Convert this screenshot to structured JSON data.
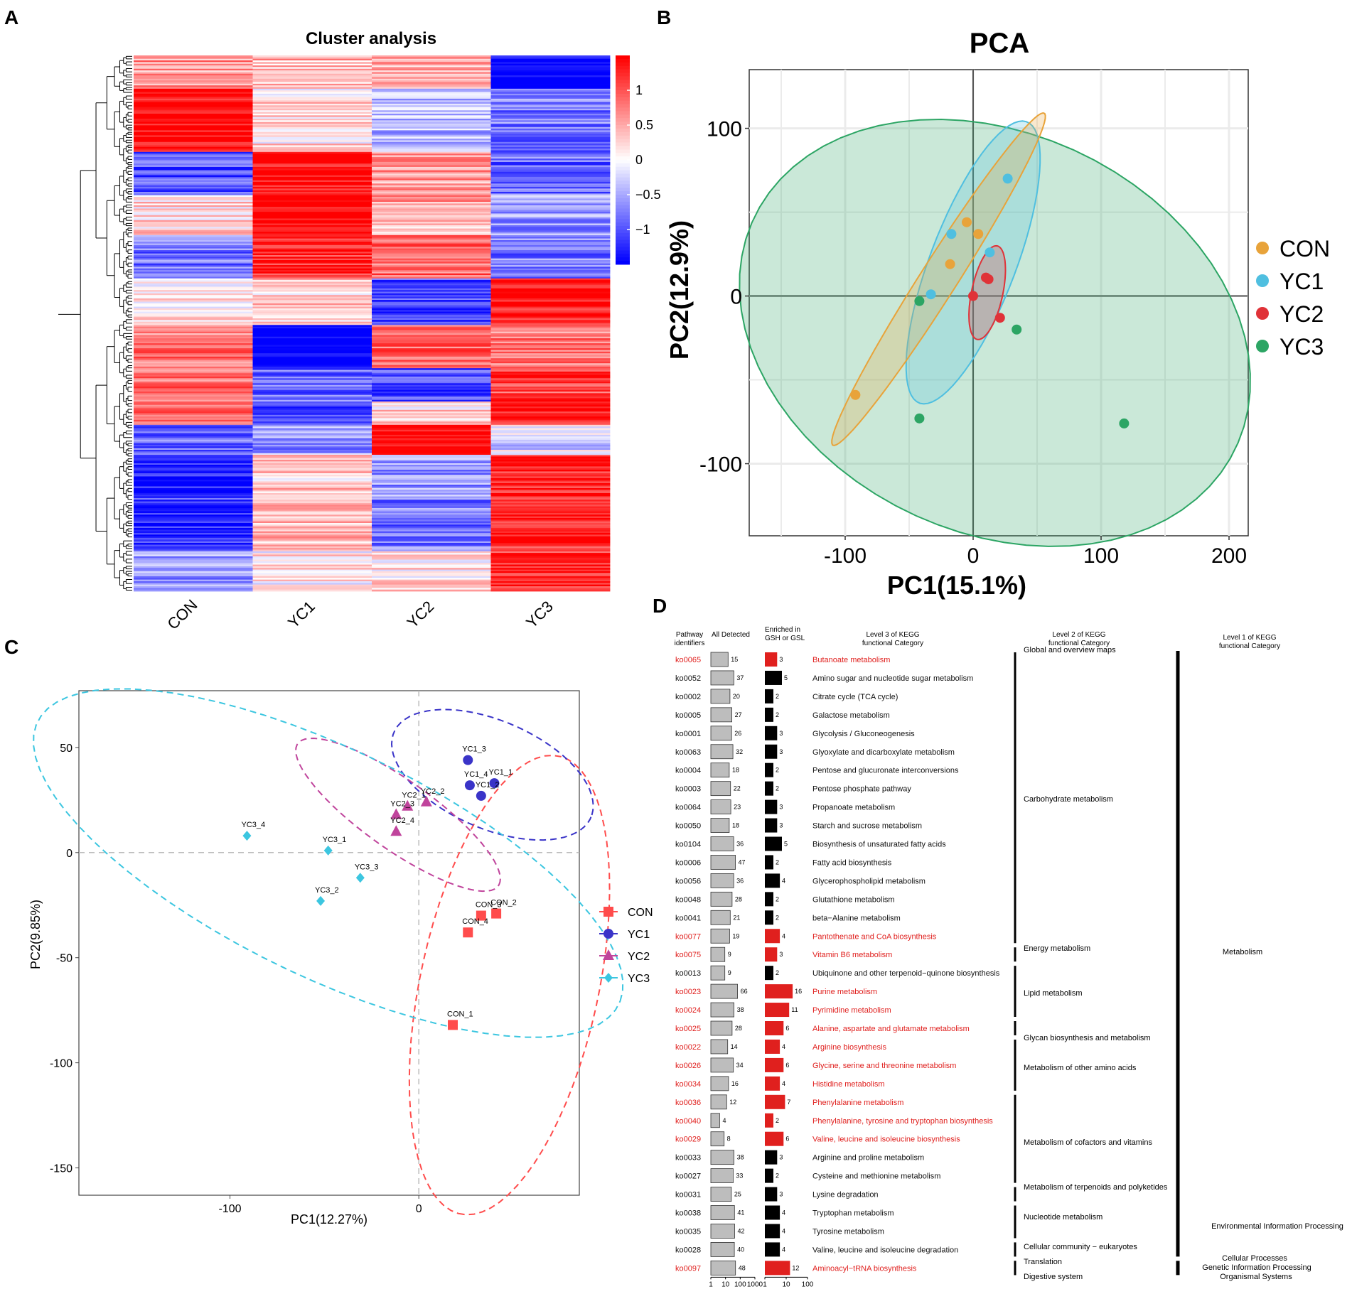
{
  "panel_labels": {
    "a": "A",
    "b": "B",
    "c": "C",
    "d": "D"
  },
  "chart_data": [
    {
      "id": "heatmap",
      "type": "heatmap",
      "title": "Cluster analysis",
      "columns": [
        "CON",
        "YC1",
        "YC2",
        "YC3"
      ],
      "colorbar": {
        "ticks": [
          1,
          0.5,
          0,
          -0.5,
          -1
        ],
        "tick_labels": [
          "1",
          "0.5",
          "0",
          "−0.5",
          "−1"
        ],
        "range": [
          -1.5,
          1.5
        ],
        "colors": {
          "high": "#ff0000",
          "mid": "#ffffff",
          "low": "#0000ff"
        }
      },
      "row_blocks": [
        {
          "rows": 20,
          "values": [
            0.6,
            0.4,
            0.5,
            -1.6
          ]
        },
        {
          "rows": 38,
          "values": [
            1.5,
            0.2,
            -0.4,
            -0.8
          ]
        },
        {
          "rows": 26,
          "values": [
            -1.0,
            1.5,
            0.6,
            -0.9
          ]
        },
        {
          "rows": 24,
          "values": [
            0.2,
            1.6,
            0.5,
            -0.6
          ]
        },
        {
          "rows": 26,
          "values": [
            -0.8,
            1.3,
            0.9,
            -0.8
          ]
        },
        {
          "rows": 28,
          "values": [
            0.2,
            0.3,
            -1.1,
            1.4
          ]
        },
        {
          "rows": 26,
          "values": [
            0.8,
            -1.6,
            0.9,
            0.8
          ]
        },
        {
          "rows": 20,
          "values": [
            0.9,
            -0.9,
            -1.0,
            1.1
          ]
        },
        {
          "rows": 14,
          "values": [
            0.9,
            -1.2,
            0.2,
            1.3
          ]
        },
        {
          "rows": 18,
          "values": [
            -0.9,
            -0.6,
            1.6,
            -0.2
          ]
        },
        {
          "rows": 26,
          "values": [
            -1.4,
            0.3,
            -0.6,
            1.3
          ]
        },
        {
          "rows": 32,
          "values": [
            -1.2,
            0.4,
            -0.8,
            1.3
          ]
        },
        {
          "rows": 24,
          "values": [
            -0.6,
            0.1,
            0.2,
            1.2
          ]
        }
      ]
    },
    {
      "id": "pca-b",
      "type": "scatter",
      "title": "PCA",
      "xlabel": "PC1(15.1%)",
      "ylabel": "PC2(12.9%)",
      "xlim": [
        -175,
        215
      ],
      "ylim": [
        -143,
        135
      ],
      "xticks": [
        -100,
        0,
        100,
        200
      ],
      "xtick_labels": [
        "-100",
        "0",
        "100",
        "200"
      ],
      "yticks": [
        100,
        0,
        -100
      ],
      "ytick_labels": [
        "100",
        "0",
        "-100"
      ],
      "series": [
        {
          "name": "CON",
          "color": "#e8a33a",
          "points": [
            [
              -92,
              -59
            ],
            [
              -18,
              19
            ],
            [
              -5,
              44
            ],
            [
              4,
              37
            ]
          ],
          "ellipse": {
            "cx": -27,
            "cy": 10,
            "rx": 129,
            "ry": 13,
            "angle": 50
          }
        },
        {
          "name": "YC1",
          "color": "#4fbfe0",
          "points": [
            [
              -33,
              1
            ],
            [
              -17,
              37
            ],
            [
              13,
              26
            ],
            [
              27,
              70
            ]
          ],
          "ellipse": {
            "cx": 0,
            "cy": 20,
            "rx": 94,
            "ry": 32,
            "angle": 62
          }
        },
        {
          "name": "YC2",
          "color": "#e03238",
          "points": [
            [
              0,
              0
            ],
            [
              10,
              11
            ],
            [
              12,
              10
            ],
            [
              21,
              -13
            ]
          ],
          "ellipse": {
            "cx": 11,
            "cy": 2,
            "rx": 29,
            "ry": 12,
            "angle": 73
          }
        },
        {
          "name": "YC3",
          "color": "#2ca564",
          "points": [
            [
              -42,
              -3
            ],
            [
              -42,
              -73
            ],
            [
              34,
              -20
            ],
            [
              118,
              -76
            ]
          ],
          "ellipse": {
            "cx": 17,
            "cy": -22,
            "rx": 203,
            "ry": 122,
            "angle": -13
          }
        }
      ]
    },
    {
      "id": "pca-c",
      "type": "scatter",
      "title": "",
      "xlabel": "PC1(12.27%)",
      "ylabel": "PC2(9.85%)",
      "xlim": [
        -180,
        85
      ],
      "ylim": [
        -163,
        77
      ],
      "xticks": [
        -100,
        0
      ],
      "xtick_labels": [
        "-100",
        "0"
      ],
      "yticks": [
        50,
        0,
        -50,
        -100,
        -150
      ],
      "ytick_labels": [
        "50",
        "0",
        "-50",
        "-100",
        "-150"
      ],
      "series": [
        {
          "name": "CON",
          "color": "#ff4c4c",
          "marker": "square",
          "points": [
            {
              "label": "CON_1",
              "x": 18,
              "y": -82
            },
            {
              "label": "CON_2",
              "x": 41,
              "y": -29
            },
            {
              "label": "CON_3",
              "x": 33,
              "y": -30
            },
            {
              "label": "CON_4",
              "x": 26,
              "y": -38
            }
          ],
          "ellipse": {
            "cx": 48,
            "cy": -63,
            "rx": 112,
            "ry": 47,
            "angle": -104
          }
        },
        {
          "name": "YC1",
          "color": "#3a34c8",
          "marker": "circle",
          "points": [
            {
              "label": "YC1_1",
              "x": 40,
              "y": 33
            },
            {
              "label": "YC1_2",
              "x": 33,
              "y": 27
            },
            {
              "label": "YC1_3",
              "x": 26,
              "y": 44
            },
            {
              "label": "YC1_4",
              "x": 27,
              "y": 32
            }
          ],
          "ellipse": {
            "cx": 39,
            "cy": 37,
            "rx": 56,
            "ry": 26,
            "angle": -20
          }
        },
        {
          "name": "YC2",
          "color": "#c0449c",
          "marker": "triangle",
          "points": [
            {
              "label": "YC2_1",
              "x": -6,
              "y": 22
            },
            {
              "label": "YC2_2",
              "x": 4,
              "y": 24
            },
            {
              "label": "YC2_3",
              "x": -12,
              "y": 18
            },
            {
              "label": "YC2_4",
              "x": -12,
              "y": 10
            }
          ],
          "ellipse": {
            "cx": -11,
            "cy": 18,
            "rx": 63,
            "ry": 17,
            "angle": -32
          }
        },
        {
          "name": "YC3",
          "color": "#3cc6e0",
          "marker": "diamond",
          "points": [
            {
              "label": "YC3_1",
              "x": -48,
              "y": 1
            },
            {
              "label": "YC3_2",
              "x": -52,
              "y": -23
            },
            {
              "label": "YC3_3",
              "x": -31,
              "y": -12
            },
            {
              "label": "YC3_4",
              "x": -91,
              "y": 8
            }
          ],
          "ellipse": {
            "cx": -48,
            "cy": -5,
            "rx": 168,
            "ry": 55,
            "angle": -23
          }
        }
      ]
    },
    {
      "id": "kegg-d",
      "type": "table",
      "headers": {
        "pathway": "Pathway\nidentifiers",
        "all_detected": "All Detected",
        "enriched": "Enriched in\nGSH or GSL",
        "level3": "Level 3 of KEGG\nfunctional Category",
        "level2": "Level 2 of KEGG\nfunctional Category",
        "level1": "Level 1 of KEGG\nfunctional Category"
      },
      "axis_labels": [
        "1",
        "10",
        "100",
        "1000",
        "1",
        "10",
        "100"
      ],
      "colors": {
        "highlight": "#e0201e",
        "enriched_bar": "#000000",
        "detected_bar": "#bdbdbd"
      },
      "rows": [
        {
          "id": "ko0065",
          "all": 15,
          "enriched": 3,
          "name": "Butanoate metabolism",
          "highlight": true
        },
        {
          "id": "ko0052",
          "all": 37,
          "enriched": 5,
          "name": "Amino sugar and nucleotide sugar metabolism",
          "highlight": false
        },
        {
          "id": "ko0002",
          "all": 20,
          "enriched": 2,
          "name": "Citrate cycle (TCA cycle)",
          "highlight": false
        },
        {
          "id": "ko0005",
          "all": 27,
          "enriched": 2,
          "name": "Galactose metabolism",
          "highlight": false
        },
        {
          "id": "ko0001",
          "all": 26,
          "enriched": 3,
          "name": "Glycolysis / Gluconeogenesis",
          "highlight": false
        },
        {
          "id": "ko0063",
          "all": 32,
          "enriched": 3,
          "name": "Glyoxylate and dicarboxylate metabolism",
          "highlight": false
        },
        {
          "id": "ko0004",
          "all": 18,
          "enriched": 2,
          "name": "Pentose and glucuronate interconversions",
          "highlight": false
        },
        {
          "id": "ko0003",
          "all": 22,
          "enriched": 2,
          "name": "Pentose phosphate pathway",
          "highlight": false
        },
        {
          "id": "ko0064",
          "all": 23,
          "enriched": 3,
          "name": "Propanoate metabolism",
          "highlight": false
        },
        {
          "id": "ko0050",
          "all": 18,
          "enriched": 3,
          "name": "Starch and sucrose metabolism",
          "highlight": false
        },
        {
          "id": "ko0104",
          "all": 36,
          "enriched": 5,
          "name": "Biosynthesis of unsaturated fatty acids",
          "highlight": false
        },
        {
          "id": "ko0006",
          "all": 47,
          "enriched": 2,
          "name": "Fatty acid biosynthesis",
          "highlight": false
        },
        {
          "id": "ko0056",
          "all": 36,
          "enriched": 4,
          "name": "Glycerophospholipid metabolism",
          "highlight": false
        },
        {
          "id": "ko0048",
          "all": 28,
          "enriched": 2,
          "name": "Glutathione metabolism",
          "highlight": false
        },
        {
          "id": "ko0041",
          "all": 21,
          "enriched": 2,
          "name": "beta−Alanine metabolism",
          "highlight": false
        },
        {
          "id": "ko0077",
          "all": 19,
          "enriched": 4,
          "name": "Pantothenate and CoA biosynthesis",
          "highlight": true
        },
        {
          "id": "ko0075",
          "all": 9,
          "enriched": 3,
          "name": "Vitamin B6 metabolism",
          "highlight": true
        },
        {
          "id": "ko0013",
          "all": 9,
          "enriched": 2,
          "name": "Ubiquinone and other terpenoid−quinone biosynthesis",
          "highlight": false
        },
        {
          "id": "ko0023",
          "all": 66,
          "enriched": 16,
          "name": "Purine metabolism",
          "highlight": true
        },
        {
          "id": "ko0024",
          "all": 38,
          "enriched": 11,
          "name": "Pyrimidine metabolism",
          "highlight": true
        },
        {
          "id": "ko0025",
          "all": 28,
          "enriched": 6,
          "name": "Alanine, aspartate and glutamate metabolism",
          "highlight": true
        },
        {
          "id": "ko0022",
          "all": 14,
          "enriched": 4,
          "name": "Arginine biosynthesis",
          "highlight": true
        },
        {
          "id": "ko0026",
          "all": 34,
          "enriched": 6,
          "name": "Glycine, serine and threonine metabolism",
          "highlight": true
        },
        {
          "id": "ko0034",
          "all": 16,
          "enriched": 4,
          "name": "Histidine metabolism",
          "highlight": true
        },
        {
          "id": "ko0036",
          "all": 12,
          "enriched": 7,
          "name": "Phenylalanine metabolism",
          "highlight": true
        },
        {
          "id": "ko0040",
          "all": 4,
          "enriched": 2,
          "name": "Phenylalanine, tyrosine and tryptophan biosynthesis",
          "highlight": true
        },
        {
          "id": "ko0029",
          "all": 8,
          "enriched": 6,
          "name": "Valine, leucine and isoleucine biosynthesis",
          "highlight": true
        },
        {
          "id": "ko0033",
          "all": 38,
          "enriched": 3,
          "name": "Arginine and proline metabolism",
          "highlight": false
        },
        {
          "id": "ko0027",
          "all": 33,
          "enriched": 2,
          "name": "Cysteine and methionine metabolism",
          "highlight": false
        },
        {
          "id": "ko0031",
          "all": 25,
          "enriched": 3,
          "name": "Lysine degradation",
          "highlight": false
        },
        {
          "id": "ko0038",
          "all": 41,
          "enriched": 4,
          "name": "Tryptophan metabolism",
          "highlight": false
        },
        {
          "id": "ko0035",
          "all": 42,
          "enriched": 4,
          "name": "Tyrosine metabolism",
          "highlight": false
        },
        {
          "id": "ko0028",
          "all": 40,
          "enriched": 4,
          "name": "Valine, leucine and isoleucine degradation",
          "highlight": false
        },
        {
          "id": "ko0097",
          "all": 48,
          "enriched": 12,
          "name": "Aminoacyl−tRNA biosynthesis",
          "highlight": true
        }
      ],
      "level2": [
        {
          "label": "Global and overview maps",
          "from": 0,
          "to": 0
        },
        {
          "label": "Carbohydrate metabolism",
          "from": 0,
          "to": 15
        },
        {
          "label": "Energy metabolism",
          "from": 16,
          "to": 16
        },
        {
          "label": "Lipid metabolism",
          "from": 17,
          "to": 19
        },
        {
          "label": "Glycan biosynthesis and metabolism",
          "from": 20,
          "to": 20
        },
        {
          "label": "Metabolism of other amino acids",
          "from": 21,
          "to": 23
        },
        {
          "label": "Metabolism of cofactors and vitamins",
          "from": 24,
          "to": 28
        },
        {
          "label": "Metabolism of terpenoids and polyketides",
          "from": 29,
          "to": 29
        },
        {
          "label": "Nucleotide metabolism",
          "from": 30,
          "to": 31
        },
        {
          "label": "Cellular community − eukaryotes",
          "from": 32,
          "to": 32
        },
        {
          "label": "Translation",
          "from": 33,
          "to": 33
        },
        {
          "label": "Digestive system",
          "from": 33,
          "to": 33
        }
      ],
      "level1": [
        {
          "label": "Metabolism",
          "from": 0,
          "to": 32
        },
        {
          "label": "Environmental Information Processing",
          "from": 31,
          "to": 32
        },
        {
          "label": "Cellular Processes",
          "from": 33,
          "to": 33
        },
        {
          "label": "Genetic Information Processing",
          "from": 33,
          "to": 33
        },
        {
          "label": "Organismal Systems",
          "from": 33,
          "to": 33
        }
      ]
    }
  ]
}
